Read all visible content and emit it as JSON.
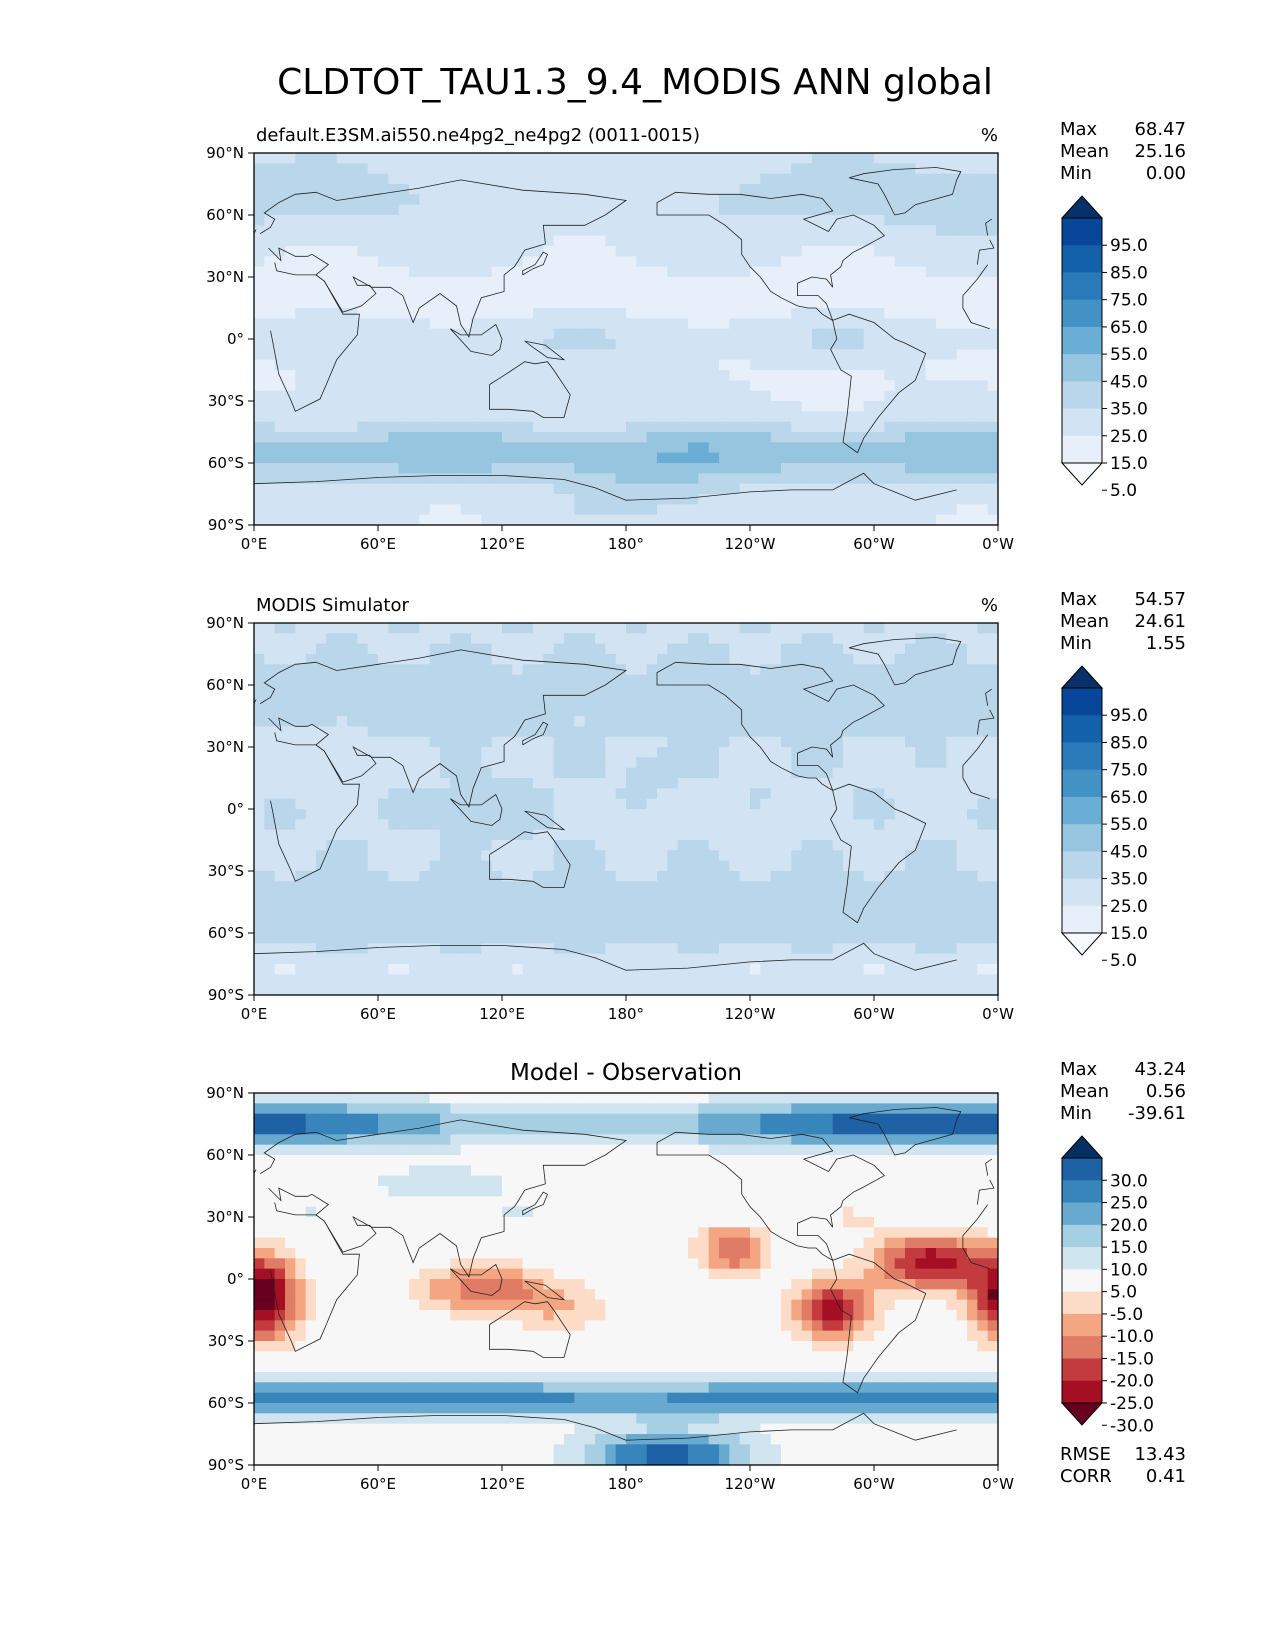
{
  "figure": {
    "title": "CLDTOT_TAU1.3_9.4_MODIS ANN global"
  },
  "chart_data": [
    {
      "type": "heatmap",
      "title": "default.E3SM.ai550.ne4pg2_ne4pg2 (0011-0015)",
      "units": "%",
      "x_tick_labels": [
        "0°E",
        "60°E",
        "120°E",
        "180°",
        "120°W",
        "60°W",
        "0°W"
      ],
      "y_tick_labels": [
        "90°N",
        "60°N",
        "30°N",
        "0°",
        "30°S",
        "60°S",
        "90°S"
      ],
      "xlim": [
        0,
        360
      ],
      "ylim": [
        -90,
        90
      ],
      "stats": [
        {
          "label": "Max",
          "value": "68.47"
        },
        {
          "label": "Mean",
          "value": "25.16"
        },
        {
          "label": "Min",
          "value": "0.00"
        }
      ],
      "colorbar": {
        "labels": [
          "95.0",
          "85.0",
          "75.0",
          "65.0",
          "55.0",
          "45.0",
          "35.0",
          "25.0",
          "15.0",
          "5.0"
        ],
        "colors": [
          "#08306b",
          "#08469a",
          "#1361aa",
          "#2a7ab9",
          "#4292c6",
          "#6aaed6",
          "#95c5df",
          "#b9d6ea",
          "#d2e3f3",
          "#e7f0fa",
          "#f7fbff"
        ],
        "extend": "both"
      },
      "field": "model"
    },
    {
      "type": "heatmap",
      "title": "MODIS Simulator",
      "units": "%",
      "x_tick_labels": [
        "0°E",
        "60°E",
        "120°E",
        "180°",
        "120°W",
        "60°W",
        "0°W"
      ],
      "y_tick_labels": [
        "90°N",
        "60°N",
        "30°N",
        "0°",
        "30°S",
        "60°S",
        "90°S"
      ],
      "xlim": [
        0,
        360
      ],
      "ylim": [
        -90,
        90
      ],
      "stats": [
        {
          "label": "Max",
          "value": "54.57"
        },
        {
          "label": "Mean",
          "value": "24.61"
        },
        {
          "label": "Min",
          "value": "1.55"
        }
      ],
      "colorbar": {
        "labels": [
          "95.0",
          "85.0",
          "75.0",
          "65.0",
          "55.0",
          "45.0",
          "35.0",
          "25.0",
          "15.0",
          "5.0"
        ],
        "colors": [
          "#08306b",
          "#08469a",
          "#1361aa",
          "#2a7ab9",
          "#4292c6",
          "#6aaed6",
          "#95c5df",
          "#b9d6ea",
          "#d2e3f3",
          "#e7f0fa",
          "#f7fbff"
        ],
        "extend": "both"
      },
      "field": "obs"
    },
    {
      "type": "heatmap",
      "title": "Model - Observation",
      "units": "",
      "x_tick_labels": [
        "0°E",
        "60°E",
        "120°E",
        "180°",
        "120°W",
        "60°W",
        "0°W"
      ],
      "y_tick_labels": [
        "90°N",
        "60°N",
        "30°N",
        "0°",
        "30°S",
        "60°S",
        "90°S"
      ],
      "xlim": [
        0,
        360
      ],
      "ylim": [
        -90,
        90
      ],
      "stats": [
        {
          "label": "Max",
          "value": "43.24"
        },
        {
          "label": "Mean",
          "value": "0.56"
        },
        {
          "label": "Min",
          "value": "-39.61"
        }
      ],
      "extra_stats": [
        {
          "label": "RMSE",
          "value": "13.43"
        },
        {
          "label": "CORR",
          "value": "0.41"
        }
      ],
      "colorbar": {
        "labels": [
          "30.0",
          "25.0",
          "20.0",
          "15.0",
          "10.0",
          "5.0",
          "-5.0",
          "-10.0",
          "-15.0",
          "-20.0",
          "-25.0",
          "-30.0"
        ],
        "colors": [
          "#053061",
          "#1e61a5",
          "#3885bc",
          "#67a9cf",
          "#a6cfe3",
          "#d1e5f0",
          "#f7f7f7",
          "#fcdbc7",
          "#f4a683",
          "#e07b65",
          "#c33a3f",
          "#a50f24",
          "#67001f"
        ],
        "extend": "both"
      },
      "field": "diff"
    }
  ]
}
